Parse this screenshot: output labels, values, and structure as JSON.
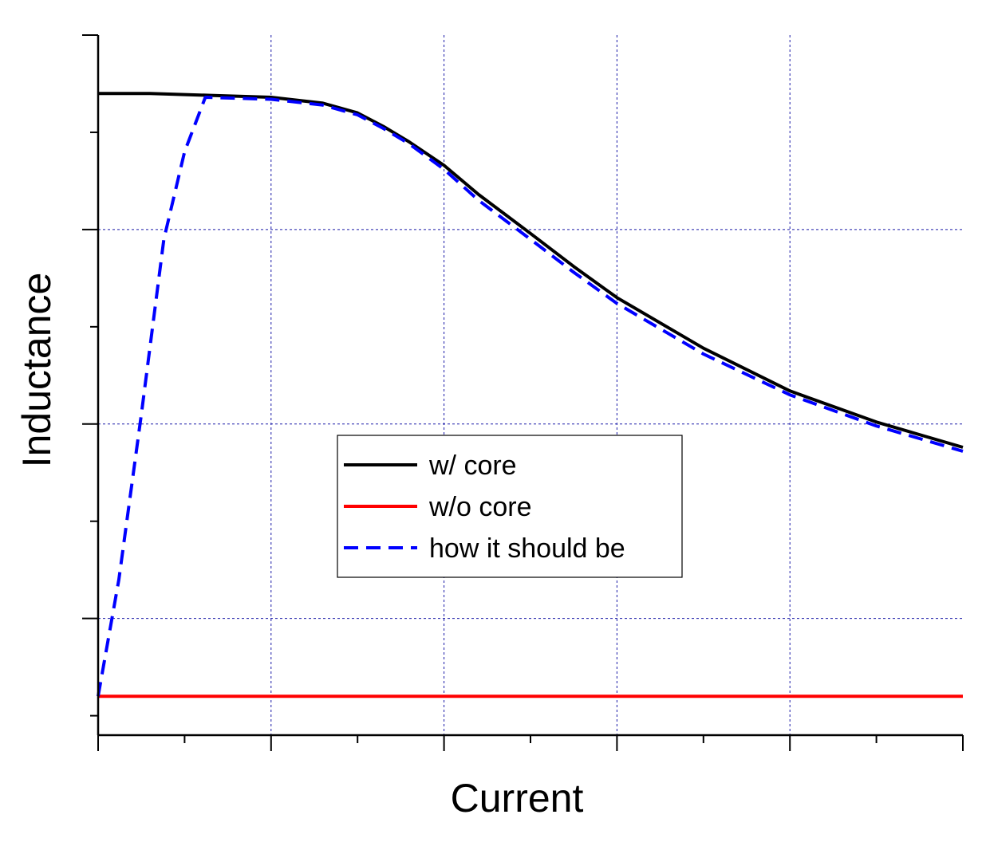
{
  "chart_data": {
    "type": "line",
    "title": "",
    "xlabel": "Current",
    "ylabel": "Inductance",
    "xlim": [
      0,
      5
    ],
    "ylim": [
      0,
      3.6
    ],
    "grid": true,
    "legend_position": "center",
    "series": [
      {
        "name": "w/ core",
        "color": "#000000",
        "dash": "solid",
        "x": [
          0,
          0.3,
          0.65,
          1.0,
          1.3,
          1.5,
          1.65,
          1.8,
          2.0,
          2.2,
          2.5,
          2.75,
          3.0,
          3.5,
          4.0,
          4.5,
          5.0
        ],
        "y": [
          3.3,
          3.3,
          3.29,
          3.28,
          3.25,
          3.2,
          3.13,
          3.05,
          2.93,
          2.78,
          2.58,
          2.41,
          2.25,
          1.99,
          1.77,
          1.61,
          1.48
        ]
      },
      {
        "name": "w/o core",
        "color": "#ff0000",
        "dash": "solid",
        "x": [
          0,
          5
        ],
        "y": [
          0.2,
          0.2
        ]
      },
      {
        "name": "how it should be",
        "color": "#0000ff",
        "dash": "dashed",
        "x": [
          0,
          0.12,
          0.25,
          0.38,
          0.5,
          0.62,
          1.0,
          1.3,
          1.5,
          1.65,
          1.8,
          2.0,
          2.2,
          2.5,
          2.75,
          3.0,
          3.5,
          4.0,
          4.5,
          5.0
        ],
        "y": [
          0.2,
          0.8,
          1.65,
          2.55,
          3.0,
          3.28,
          3.27,
          3.24,
          3.19,
          3.12,
          3.04,
          2.91,
          2.75,
          2.55,
          2.38,
          2.22,
          1.96,
          1.75,
          1.59,
          1.46
        ]
      }
    ]
  }
}
